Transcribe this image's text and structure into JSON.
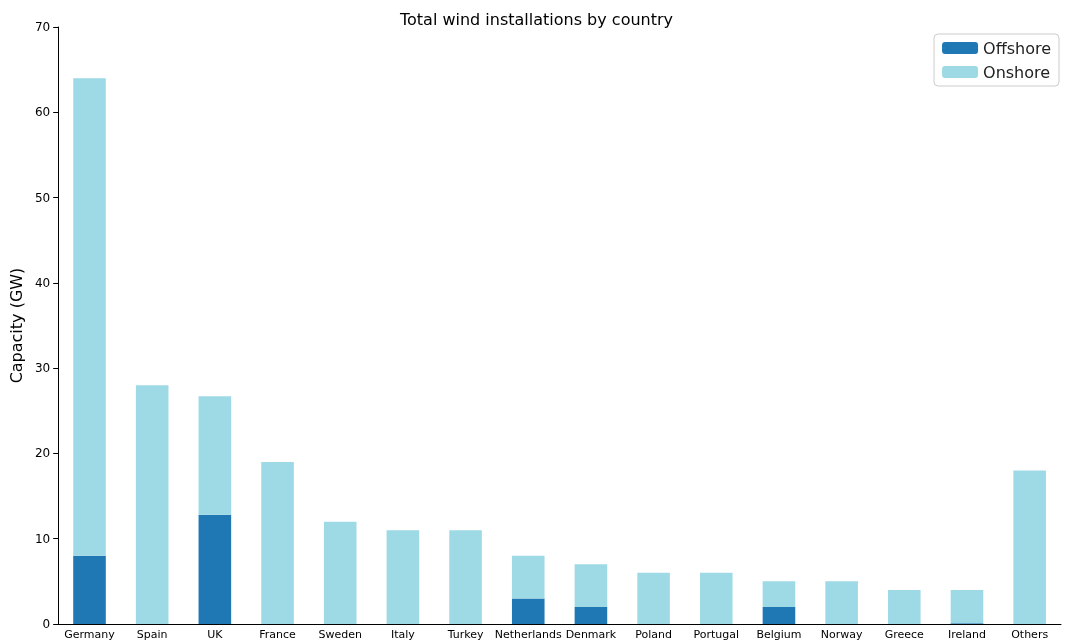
{
  "chart_data": {
    "type": "bar",
    "title": "Total wind installations by country",
    "ylabel": "Capacity (GW)",
    "categories": [
      "Germany",
      "Spain",
      "UK",
      "France",
      "Sweden",
      "Italy",
      "Turkey",
      "Netherlands",
      "Denmark",
      "Poland",
      "Portugal",
      "Belgium",
      "Norway",
      "Greece",
      "Ireland",
      "Others"
    ],
    "stacked": true,
    "series": [
      {
        "name": "Offshore",
        "color": "#1f77b4",
        "values": [
          8,
          0,
          12.8,
          0,
          0,
          0,
          0,
          3,
          2,
          0,
          0,
          2,
          0,
          0,
          0.1,
          0
        ]
      },
      {
        "name": "Onshore",
        "color": "#9edae5",
        "values": [
          56,
          28,
          13.9,
          19,
          12,
          11,
          11,
          5,
          5,
          6,
          6,
          3,
          5,
          4,
          3.9,
          18
        ]
      }
    ],
    "ylim": [
      0,
      70
    ],
    "yticks": [
      0,
      10,
      20,
      30,
      40,
      50,
      60,
      70
    ],
    "grid": false,
    "legend": "top right"
  }
}
